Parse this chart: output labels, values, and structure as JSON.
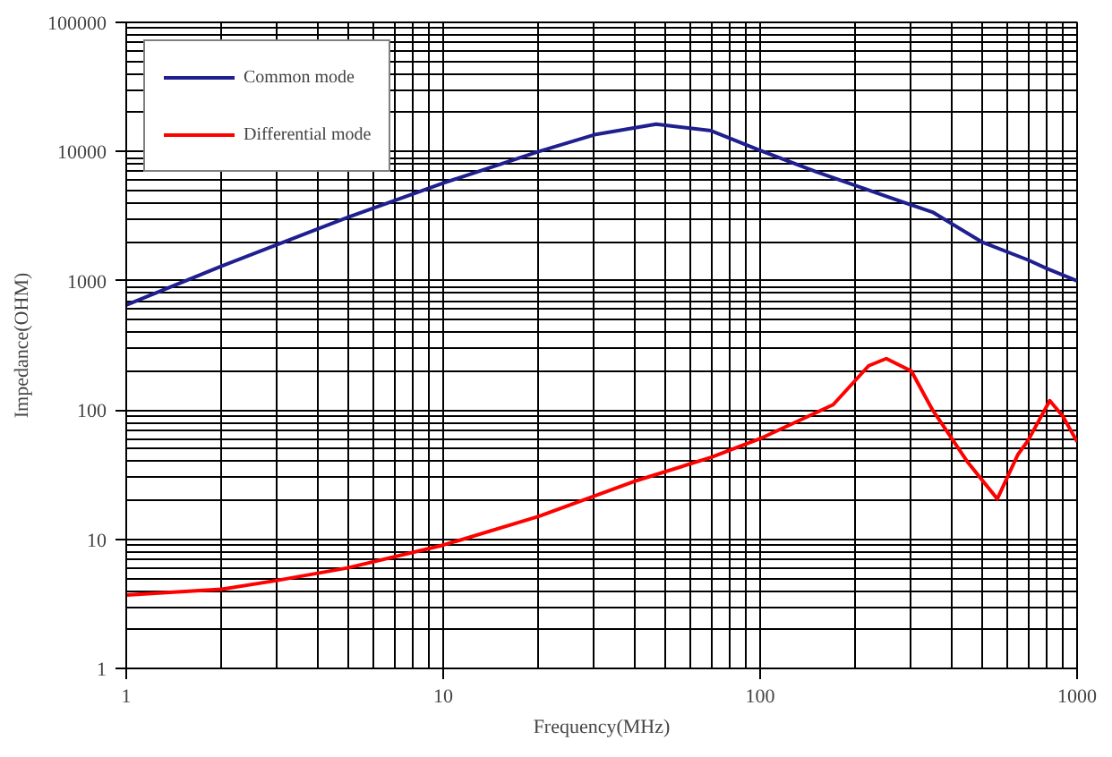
{
  "chart_data": {
    "type": "line",
    "xlabel": "Frequency(MHz)",
    "ylabel": "Impedance(OHM)",
    "log": "xy",
    "grid": true,
    "legend": "top left",
    "xlim": [
      1,
      1000
    ],
    "ylim": [
      1,
      100000
    ],
    "xticks": [
      1,
      10,
      100,
      1000
    ],
    "yticks": [
      1,
      10,
      100,
      1000,
      10000,
      100000
    ],
    "series": [
      {
        "name": "Common mode",
        "color": "#1f1f8f",
        "x": [
          1,
          2,
          5,
          10,
          20,
          30,
          47,
          70,
          100,
          150,
          250,
          350,
          500,
          700,
          800,
          1000
        ],
        "values": [
          650,
          1300,
          3100,
          5700,
          10000,
          13500,
          16300,
          14500,
          10200,
          7000,
          4500,
          3400,
          2000,
          1450,
          1250,
          1000
        ]
      },
      {
        "name": "Differential mode",
        "color": "#ff0000",
        "x": [
          1,
          2,
          3,
          5,
          10,
          20,
          40,
          70,
          100,
          170,
          220,
          250,
          300,
          350,
          450,
          560,
          650,
          700,
          820,
          900,
          1000
        ],
        "values": [
          3.7,
          4.1,
          4.8,
          6,
          9,
          15,
          28,
          43,
          60,
          110,
          220,
          250,
          200,
          100,
          40,
          20.5,
          45,
          58,
          118,
          90,
          57
        ]
      }
    ]
  }
}
